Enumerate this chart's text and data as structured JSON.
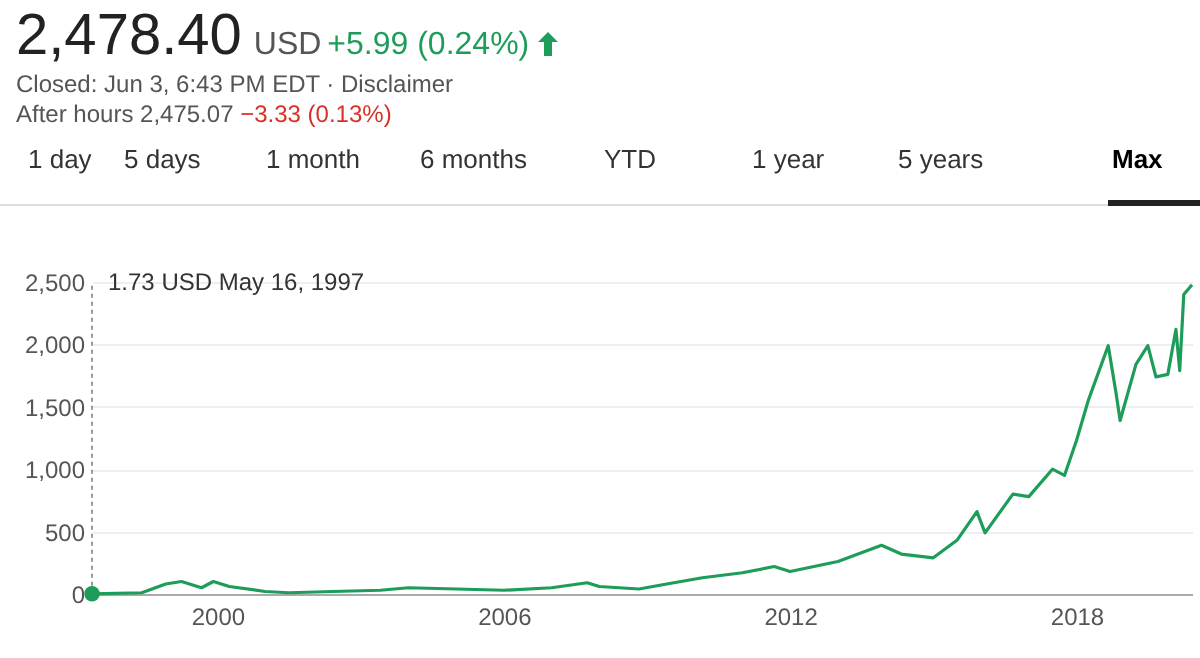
{
  "chart_data": {
    "type": "line",
    "title": "2,478.40",
    "subtitle": "Closed: Jun 3, 6:43 PM EDT · Disclaimer",
    "annotations": [
      "USD",
      "+5.99 (0.24%)",
      "After hours 2,475.07",
      "−3.33 (0.13%)",
      "1 day",
      "5 days",
      "1 month",
      "6 months",
      "YTD",
      "1 year",
      "5 years",
      "Max",
      "1.73 USD  May 16, 1997"
    ],
    "x": [
      "1997-05-16",
      "1998-06",
      "1998-12",
      "1999-04",
      "1999-09",
      "1999-12",
      "2000-04",
      "2001-01",
      "2001-07",
      "2002-06",
      "2003-06",
      "2004-01",
      "2005-01",
      "2006-01",
      "2007-01",
      "2007-10",
      "2008-01",
      "2008-11",
      "2009-06",
      "2010-03",
      "2011-01",
      "2011-09",
      "2012-01",
      "2013-01",
      "2013-12",
      "2014-05",
      "2015-01",
      "2015-07",
      "2015-12",
      "2016-02",
      "2016-09",
      "2017-01",
      "2017-07",
      "2017-10",
      "2018-01",
      "2018-04",
      "2018-09",
      "2018-11",
      "2018-12",
      "2019-04",
      "2019-07",
      "2019-09",
      "2019-12",
      "2020-02",
      "2020-03",
      "2020-04",
      "2020-06-03"
    ],
    "series": [
      {
        "color": "#1e9d5a",
        "values": [
          1.73,
          10,
          80,
          100,
          50,
          100,
          60,
          20,
          10,
          20,
          30,
          50,
          40,
          30,
          50,
          90,
          60,
          40,
          80,
          130,
          170,
          220,
          180,
          260,
          390,
          320,
          290,
          430,
          660,
          490,
          800,
          780,
          1000,
          950,
          1230,
          1550,
          1990,
          1600,
          1390,
          1840,
          1990,
          1740,
          1760,
          2120,
          1790,
          2400,
          2478
        ]
      }
    ],
    "xlim": [
      "1997-05-16",
      "2020-06-03"
    ],
    "xticks": [
      "2000",
      "2006",
      "2012",
      "2018"
    ],
    "ylim": [
      0,
      2500
    ],
    "yticks": [
      0,
      500,
      {
        "value": 1000,
        "label": "1,000"
      },
      {
        "value": 1500,
        "label": "1,500"
      },
      {
        "value": 2000,
        "label": "2,000"
      },
      {
        "value": 2500,
        "label": "2,500"
      }
    ],
    "grid": "y",
    "marker": "none",
    "line_style": "solid"
  }
}
